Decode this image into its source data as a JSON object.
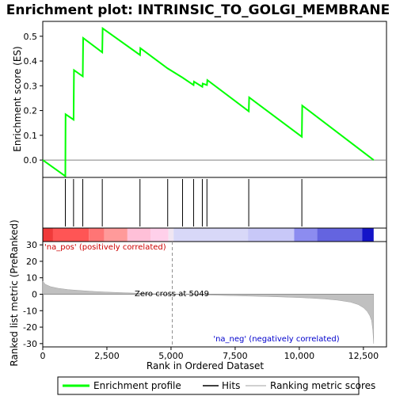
{
  "chart_data": {
    "type": "line",
    "title": "Enrichment plot: INTRINSIC_TO_GOLGI_MEMBRANE",
    "xlabel": "Rank in Ordered Dataset",
    "es_panel": {
      "ylabel": "Enrichment score (ES)",
      "ylim": [
        -0.07,
        0.56
      ],
      "yticks": [
        "0.0",
        "0.1",
        "0.2",
        "0.3",
        "0.4",
        "0.5"
      ],
      "ytick_values": [
        0.0,
        0.1,
        0.2,
        0.3,
        0.4,
        0.5
      ],
      "series": [
        {
          "name": "Enrichment profile",
          "color": "#00ff00",
          "x": [
            0,
            880,
            890,
            1200,
            1215,
            1560,
            1575,
            2320,
            2335,
            3790,
            3805,
            4870,
            5450,
            5880,
            5895,
            6220,
            6235,
            6400,
            6415,
            8030,
            8045,
            10100,
            10115,
            12900
          ],
          "y": [
            0.0,
            -0.065,
            0.185,
            0.163,
            0.363,
            0.338,
            0.493,
            0.435,
            0.532,
            0.424,
            0.452,
            0.37,
            0.333,
            0.303,
            0.317,
            0.296,
            0.309,
            0.303,
            0.323,
            0.197,
            0.253,
            0.094,
            0.22,
            0.0
          ]
        }
      ],
      "hits": [
        880,
        1200,
        1560,
        2320,
        3790,
        4870,
        5450,
        5880,
        6220,
        6400,
        8030,
        10100
      ]
    },
    "rank_panel": {
      "ylabel": "Ranked list metric (PreRanked)",
      "ylim": [
        -32,
        32
      ],
      "yticks": [
        "30",
        "20",
        "10",
        "0",
        "-10",
        "-20",
        "-30"
      ],
      "ytick_values": [
        30,
        20,
        10,
        0,
        -10,
        -20,
        -30
      ],
      "metric_x": [
        0,
        100,
        300,
        600,
        1000,
        1500,
        2000,
        2500,
        3000,
        3500,
        4000,
        4500,
        5049,
        6000,
        7000,
        8000,
        9000,
        10000,
        10500,
        11000,
        11500,
        12000,
        12300,
        12500,
        12650,
        12750,
        12820,
        12870,
        12900
      ],
      "metric_y": [
        8,
        6,
        4.6,
        3.6,
        2.8,
        2.2,
        1.7,
        1.3,
        1.0,
        0.7,
        0.45,
        0.2,
        0,
        -0.3,
        -0.7,
        -1.1,
        -1.5,
        -2.0,
        -2.4,
        -2.9,
        -3.6,
        -4.8,
        -6.3,
        -8.2,
        -10.5,
        -13,
        -16,
        -22,
        -30
      ],
      "zero_cross": 5049,
      "zero_cross_label": "Zero cross at 5049",
      "pos_label": "'na_pos' (positively correlated)",
      "neg_label": "'na_neg' (negatively correlated)"
    },
    "xlim": [
      0,
      13400
    ],
    "xticks": [
      "0",
      "2,500",
      "5,000",
      "7,500",
      "10,000",
      "12,500"
    ],
    "xtick_values": [
      0,
      2500,
      5000,
      7500,
      10000,
      12500
    ],
    "heatbar": [
      {
        "start": 0,
        "end": 400,
        "color": "#f03a3a"
      },
      {
        "start": 400,
        "end": 1800,
        "color": "#ff5555"
      },
      {
        "start": 1800,
        "end": 2400,
        "color": "#ff7575"
      },
      {
        "start": 2400,
        "end": 3300,
        "color": "#ff9a9a"
      },
      {
        "start": 3300,
        "end": 4200,
        "color": "#ffc0d8"
      },
      {
        "start": 4200,
        "end": 4900,
        "color": "#ffd0ea"
      },
      {
        "start": 4900,
        "end": 5100,
        "color": "#f0e6f2"
      },
      {
        "start": 5100,
        "end": 8000,
        "color": "#d8d8f8"
      },
      {
        "start": 8000,
        "end": 9800,
        "color": "#c8c8f8"
      },
      {
        "start": 9800,
        "end": 10700,
        "color": "#8c8cf0"
      },
      {
        "start": 10700,
        "end": 12450,
        "color": "#6464e0"
      },
      {
        "start": 12450,
        "end": 12900,
        "color": "#1414c8"
      }
    ],
    "legend": {
      "placement": "bottom",
      "items": [
        {
          "label": "Enrichment profile",
          "color": "#00ff00"
        },
        {
          "label": "Hits",
          "color": "#000000"
        },
        {
          "label": "Ranking metric scores",
          "color": "#c0c0c0"
        }
      ]
    }
  }
}
